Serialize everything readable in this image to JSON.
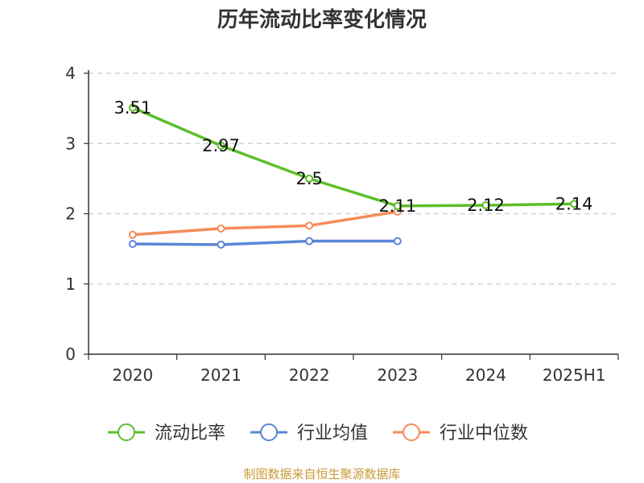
{
  "title": "历年流动比率变化情况",
  "source": "制图数据来自恒生聚源数据库",
  "chart_data": {
    "type": "line",
    "title": "历年流动比率变化情况",
    "categories": [
      "2020",
      "2021",
      "2022",
      "2023",
      "2024",
      "2025H1"
    ],
    "ylim": [
      0,
      4
    ],
    "yticks": [
      0,
      1,
      2,
      3,
      4
    ],
    "grid": true,
    "legend_position": "bottom",
    "series": [
      {
        "name": "流动比率",
        "color": "#5cbf2a",
        "values": [
          3.51,
          2.97,
          2.5,
          2.11,
          2.12,
          2.14
        ],
        "labels": [
          "3.51",
          "2.97",
          "2.5",
          "2.11",
          "2.12",
          "2.14"
        ]
      },
      {
        "name": "行业均值",
        "color": "#5b86d6",
        "values": [
          1.57,
          1.56,
          1.61,
          1.61,
          null,
          null
        ]
      },
      {
        "name": "行业中位数",
        "color": "#f58c5a",
        "values": [
          1.7,
          1.79,
          1.83,
          2.03,
          null,
          null
        ]
      }
    ]
  }
}
